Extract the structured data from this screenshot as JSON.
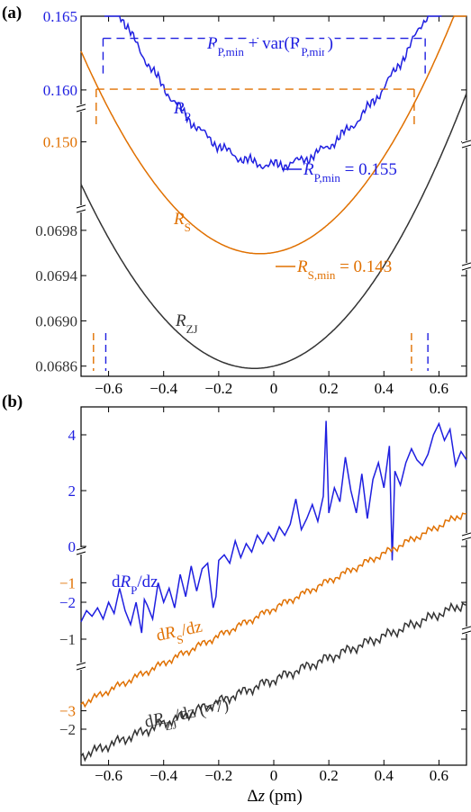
{
  "colors": {
    "blue": "#1f1fe0",
    "orange": "#e07000",
    "gray": "#333333",
    "axis": "#000000"
  },
  "chart_data": [
    {
      "panel": "(a)",
      "type": "line",
      "xlim": [
        -0.7,
        0.7
      ],
      "xticks": [
        "-0.6",
        "-0.4",
        "-0.2",
        "0",
        "0.2",
        "0.4",
        "0.6"
      ],
      "xtick_values": [
        -0.6,
        -0.4,
        -0.2,
        0,
        0.2,
        0.4,
        0.6
      ],
      "y_segments": [
        {
          "name": "RP",
          "color": "blue",
          "ylim": [
            0.1545,
            0.165
          ],
          "ticks": [
            0.16,
            0.165
          ],
          "tick_labels": [
            "0.160",
            "0.165"
          ]
        },
        {
          "name": "RS",
          "color": "orange",
          "ylim": [
            0.1422,
            0.1555
          ],
          "ticks": [
            0.15
          ],
          "tick_labels": [
            "0.150"
          ]
        },
        {
          "name": "RZJ",
          "color": "gray",
          "ylim": [
            0.06851,
            0.06999
          ],
          "ticks": [
            0.0686,
            0.069,
            0.0694,
            0.0698
          ],
          "tick_labels": [
            "0.0686",
            "0.0690",
            "0.0694",
            "0.0698"
          ]
        }
      ],
      "series": [
        {
          "name": "RP",
          "color": "blue",
          "shape": "parabola-noisy",
          "x0": 0.0,
          "ymin": 0.1549,
          "curv": 0.033,
          "noise": 0.00035
        },
        {
          "name": "RS",
          "color": "orange",
          "shape": "parabola",
          "x0": -0.05,
          "ymin": 0.143,
          "curv": 0.03
        },
        {
          "name": "RZJ",
          "color": "gray",
          "shape": "parabola",
          "x0": -0.07,
          "ymin": 0.06858,
          "curv": 0.0041
        }
      ],
      "labels": [
        {
          "main": "R",
          "sub": "P",
          "color": "blue"
        },
        {
          "main": "R",
          "sub": "S",
          "color": "orange"
        },
        {
          "main": "R",
          "sub": "ZJ",
          "color": "gray"
        }
      ],
      "annotations": {
        "rp_var": {
          "pre": "R",
          "sub": "P,min",
          "mid": " + var(R",
          "sub2": "P,min",
          "post": ")"
        },
        "rp_min": {
          "pre": "R",
          "sub": "P,min",
          "post": " = 0.155"
        },
        "rs_min": {
          "pre": "R",
          "sub": "S,min",
          "post": " = 0.143"
        }
      },
      "intervals": [
        {
          "series": "RP",
          "left": -0.62,
          "right": 0.55,
          "level": 0.1635
        },
        {
          "series": "RS",
          "left": -0.645,
          "right": 0.51,
          "level": 0.1533
        }
      ]
    },
    {
      "panel": "(b)",
      "type": "line",
      "xlim": [
        -0.7,
        0.7
      ],
      "xticks": [
        "-0.6",
        "-0.4",
        "-0.2",
        "0",
        "0.2",
        "0.4",
        "0.6"
      ],
      "xtick_values": [
        -0.6,
        -0.4,
        -0.2,
        0,
        0.2,
        0.4,
        0.6
      ],
      "xlabel": {
        "pre": "Δ",
        "var": "z",
        "post": " (pm)"
      },
      "y_segments": [
        {
          "name": "dRP/dz",
          "color": "blue",
          "ylim": [
            -3.0,
            5.0
          ],
          "ticks": [
            -2,
            0,
            2,
            4
          ],
          "tick_labels": [
            "-2",
            "0",
            "2",
            "4"
          ]
        },
        {
          "name": "dRS/dz",
          "color": "orange",
          "ylim": [
            -3.4,
            0.2
          ],
          "ticks": [
            -3,
            -1
          ],
          "tick_labels": [
            "-3",
            "-1"
          ]
        },
        {
          "name": "dRZJ/dz",
          "color": "gray",
          "ylim": [
            -2.4,
            -0.5
          ],
          "ticks": [
            -2,
            -1
          ],
          "tick_labels": [
            "-2",
            "-1"
          ]
        }
      ],
      "series": [
        {
          "name": "dRP/dz",
          "color": "blue",
          "x": [
            -0.7,
            -0.68,
            -0.66,
            -0.64,
            -0.62,
            -0.6,
            -0.58,
            -0.56,
            -0.54,
            -0.52,
            -0.5,
            -0.48,
            -0.47,
            -0.46,
            -0.44,
            -0.42,
            -0.4,
            -0.38,
            -0.36,
            -0.34,
            -0.32,
            -0.3,
            -0.28,
            -0.26,
            -0.24,
            -0.22,
            -0.21,
            -0.2,
            -0.18,
            -0.16,
            -0.14,
            -0.12,
            -0.1,
            -0.08,
            -0.06,
            -0.04,
            -0.02,
            0.0,
            0.02,
            0.04,
            0.06,
            0.08,
            0.1,
            0.12,
            0.14,
            0.16,
            0.18,
            0.19,
            0.2,
            0.22,
            0.24,
            0.26,
            0.28,
            0.3,
            0.32,
            0.34,
            0.36,
            0.38,
            0.4,
            0.42,
            0.43,
            0.44,
            0.46,
            0.48,
            0.5,
            0.52,
            0.54,
            0.56,
            0.58,
            0.6,
            0.62,
            0.64,
            0.66,
            0.68,
            0.7
          ],
          "values": [
            -2.7,
            -2.3,
            -2.5,
            -2.2,
            -2.6,
            -2.0,
            -2.4,
            -1.5,
            -2.3,
            -2.8,
            -2.0,
            -3.1,
            -1.9,
            -2.1,
            -2.6,
            -1.3,
            -2.0,
            -1.5,
            -2.2,
            -1.0,
            -1.8,
            -0.7,
            -1.6,
            -0.8,
            -0.6,
            -2.2,
            -1.8,
            -0.5,
            -0.3,
            -0.6,
            0.2,
            -0.4,
            0.1,
            -0.2,
            0.4,
            0.1,
            0.5,
            0.2,
            0.7,
            0.4,
            0.8,
            1.7,
            0.6,
            1.0,
            1.5,
            0.9,
            1.8,
            4.5,
            1.2,
            2.1,
            1.6,
            3.2,
            2.0,
            1.2,
            2.6,
            1.0,
            2.4,
            3.0,
            2.1,
            3.6,
            -0.5,
            2.7,
            2.2,
            3.0,
            3.5,
            3.1,
            2.9,
            3.3,
            4.0,
            4.4,
            3.8,
            4.2,
            2.9,
            3.4,
            3.1
          ]
        },
        {
          "name": "dRS/dz",
          "color": "orange",
          "x": [
            -0.7,
            0.7
          ],
          "values": [
            -2.9,
            0.1
          ]
        },
        {
          "name": "dRZJ/dz",
          "color": "gray",
          "x": [
            -0.7,
            0.7
          ],
          "values": [
            -2.3,
            -0.6
          ]
        }
      ],
      "labels": [
        {
          "pre": "d",
          "main": "R",
          "sub": "P",
          "post": "/dz",
          "color": "blue"
        },
        {
          "pre": "d",
          "main": "R",
          "sub": "S",
          "post": "/dz",
          "color": "orange"
        },
        {
          "pre": "d",
          "main": "R",
          "sub": "ZJ",
          "post": "/dz (×7)",
          "color": "gray"
        }
      ]
    }
  ]
}
